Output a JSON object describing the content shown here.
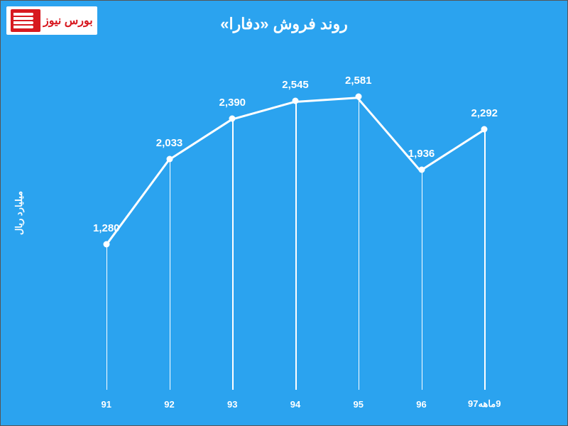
{
  "chart": {
    "type": "line",
    "title": "روند فروش «دفارا»",
    "title_fontsize": 22,
    "y_axis_label": "میلیارد ریال",
    "label_fontsize": 13,
    "background_color": "#2ba3ef",
    "line_color": "#ffffff",
    "line_width": 3,
    "marker_color": "#ffffff",
    "marker_size": 9,
    "drop_line_color": "#ffffff",
    "drop_line_width": 1.5,
    "text_color": "#ffffff",
    "categories": [
      "91",
      "92",
      "93",
      "94",
      "95",
      "96",
      "9ماهه97"
    ],
    "values": [
      1280,
      2033,
      2390,
      2545,
      2581,
      1936,
      2292
    ],
    "value_labels": [
      "1,280",
      "2,033",
      "2,390",
      "2,545",
      "2,581",
      "1,936",
      "2,292"
    ],
    "ylim": [
      0,
      3000
    ],
    "data_label_fontsize": 15
  },
  "logo": {
    "text": "بورس نیوز",
    "accent_color": "#d71920",
    "bg_color": "#ffffff"
  }
}
